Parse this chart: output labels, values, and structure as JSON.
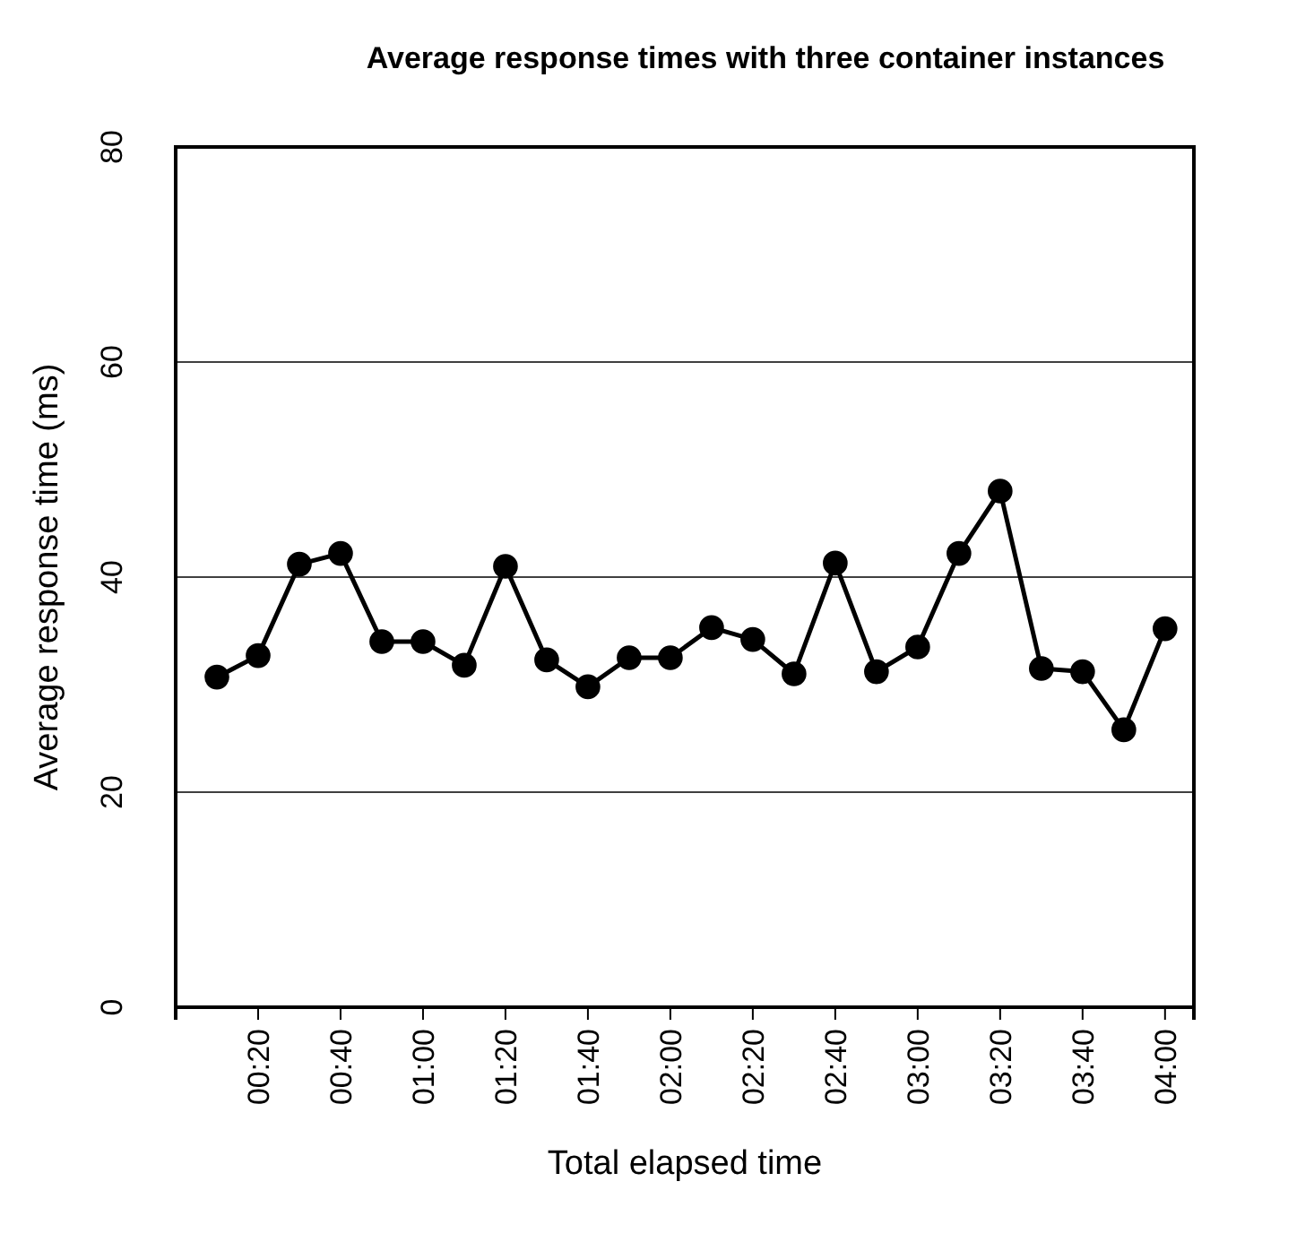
{
  "chart_data": {
    "type": "line",
    "title": "Average response times with three container instances",
    "xlabel": "Total elapsed time",
    "ylabel": "Average response time (ms)",
    "x": [
      10,
      20,
      30,
      40,
      50,
      60,
      70,
      80,
      90,
      100,
      110,
      120,
      130,
      140,
      150,
      160,
      170,
      180,
      190,
      200,
      210,
      220,
      230,
      240
    ],
    "series": [
      {
        "color": "#000000",
        "values": [
          30.7,
          32.7,
          41.2,
          42.2,
          34,
          34,
          31.8,
          41,
          32.3,
          29.8,
          32.5,
          32.5,
          35.3,
          34.2,
          31,
          41.3,
          31.2,
          33.5,
          42.2,
          48,
          31.5,
          31.2,
          25.8,
          35.2
        ]
      }
    ],
    "xlim": [
      0,
      247
    ],
    "ylim": [
      0,
      80
    ],
    "xticks": [
      {
        "value": 20,
        "label": "00:20"
      },
      {
        "value": 40,
        "label": "00:40"
      },
      {
        "value": 60,
        "label": "01:00"
      },
      {
        "value": 80,
        "label": "01:20"
      },
      {
        "value": 100,
        "label": "01:40"
      },
      {
        "value": 120,
        "label": "02:00"
      },
      {
        "value": 140,
        "label": "02:20"
      },
      {
        "value": 160,
        "label": "02:40"
      },
      {
        "value": 180,
        "label": "03:00"
      },
      {
        "value": 200,
        "label": "03:20"
      },
      {
        "value": 220,
        "label": "03:40"
      },
      {
        "value": 240,
        "label": "04:00"
      }
    ],
    "yticks": [
      0,
      20,
      40,
      60,
      80
    ],
    "grid": "y",
    "marker": "circle",
    "line_style": "solid"
  }
}
